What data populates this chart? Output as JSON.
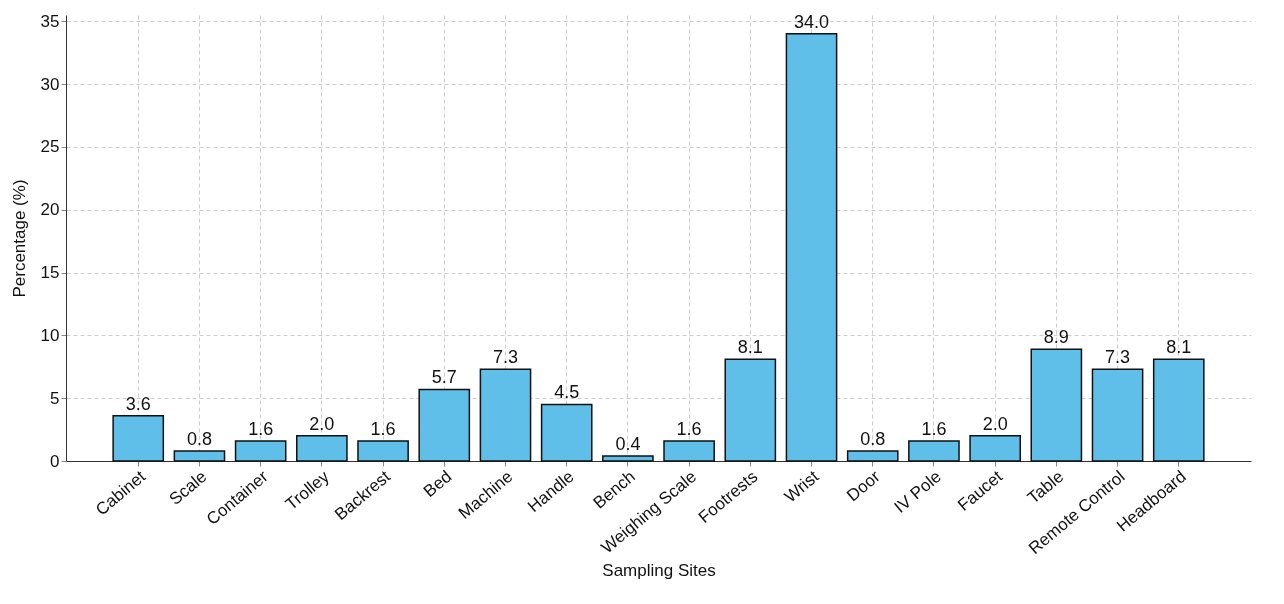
{
  "chart_data": {
    "type": "bar",
    "xlabel": "Sampling Sites",
    "ylabel": "Percentage (%)",
    "categories": [
      "Cabinet",
      "Scale",
      "Container",
      "Trolley",
      "Backrest",
      "Bed",
      "Machine",
      "Handle",
      "Bench",
      "Weighing Scale",
      "Footrests",
      "Wrist",
      "Door",
      "IV Pole",
      "Faucet",
      "Table",
      "Remote Control",
      "Headboard"
    ],
    "values": [
      3.6,
      0.8,
      1.6,
      2.0,
      1.6,
      5.7,
      7.3,
      4.5,
      0.4,
      1.6,
      8.1,
      34.0,
      0.8,
      1.6,
      2.0,
      8.9,
      7.3,
      8.1
    ],
    "value_labels": [
      "3.6",
      "0.8",
      "1.6",
      "2.0",
      "1.6",
      "5.7",
      "7.3",
      "4.5",
      "0.4",
      "1.6",
      "8.1",
      "34.0",
      "0.8",
      "1.6",
      "2.0",
      "8.9",
      "7.3",
      "8.1"
    ],
    "color": "#5fbfe8",
    "ylim": [
      0,
      35.5
    ],
    "yticks": [
      0,
      5,
      10,
      15,
      20,
      25,
      30,
      35
    ],
    "grid": true
  }
}
